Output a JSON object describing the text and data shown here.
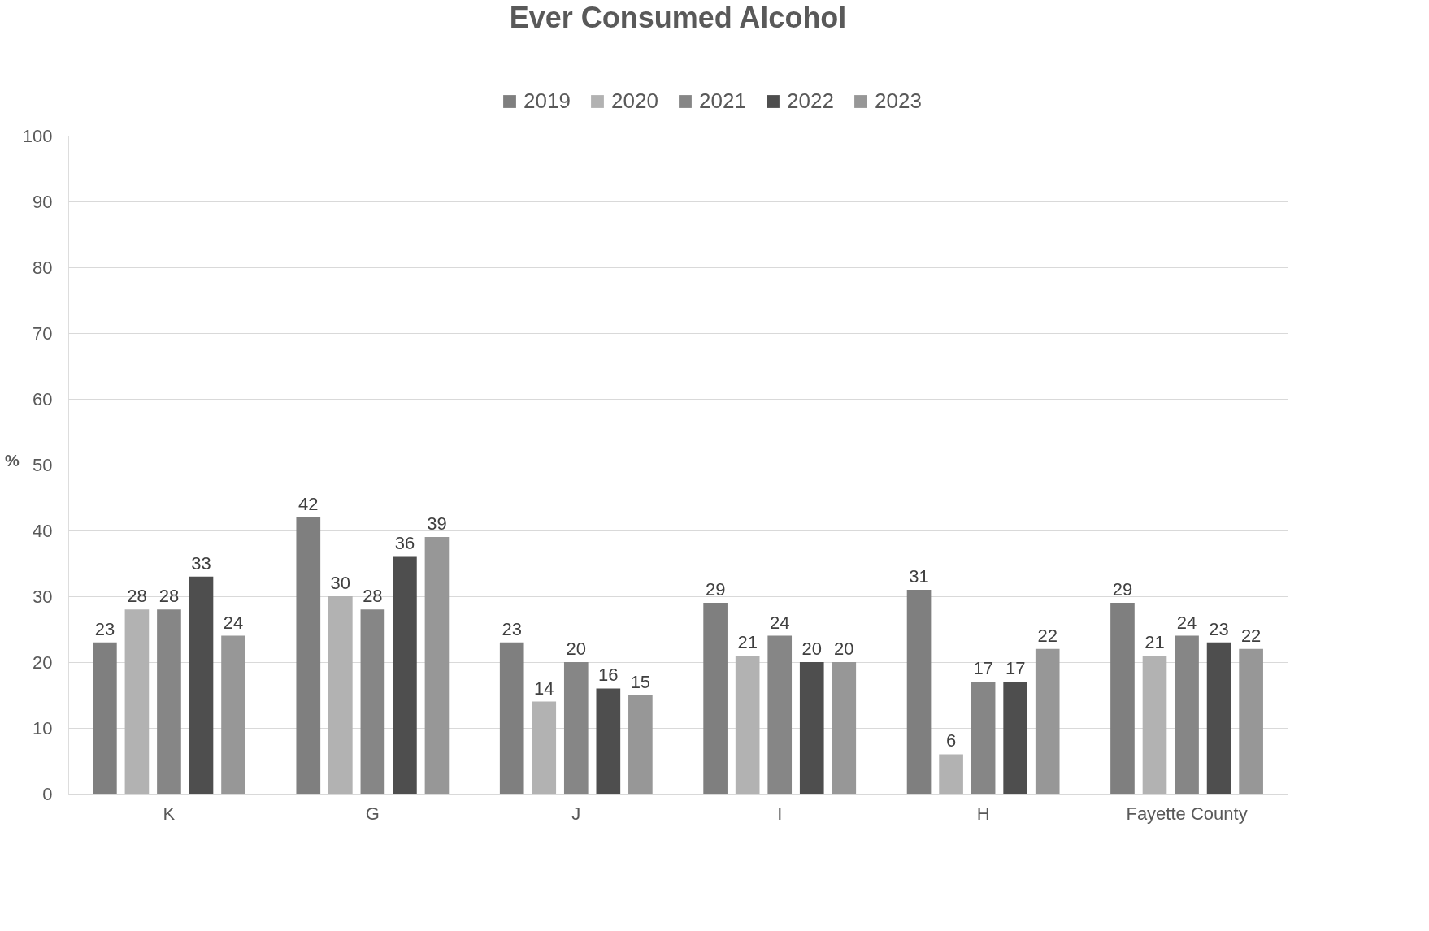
{
  "chart_data": {
    "type": "bar",
    "title": "Ever Consumed Alcohol",
    "ylabel": "%",
    "categories": [
      "K",
      "G",
      "J",
      "I",
      "H",
      "Fayette County"
    ],
    "series": [
      {
        "name": "2019",
        "color": "#7f7f7f",
        "values": [
          23,
          42,
          23,
          29,
          31,
          29
        ]
      },
      {
        "name": "2020",
        "color": "#b2b2b2",
        "values": [
          28,
          30,
          14,
          21,
          6,
          21
        ]
      },
      {
        "name": "2021",
        "color": "#868686",
        "values": [
          28,
          28,
          20,
          24,
          17,
          24
        ]
      },
      {
        "name": "2022",
        "color": "#4e4e4e",
        "values": [
          33,
          36,
          16,
          20,
          17,
          23
        ]
      },
      {
        "name": "2023",
        "color": "#979797",
        "values": [
          24,
          39,
          15,
          20,
          22,
          22
        ]
      }
    ],
    "ylim": [
      0,
      100
    ],
    "yticks": [
      0,
      10,
      20,
      30,
      40,
      50,
      60,
      70,
      80,
      90,
      100
    ],
    "grid": "y",
    "legend": "top",
    "data_labels": true
  }
}
